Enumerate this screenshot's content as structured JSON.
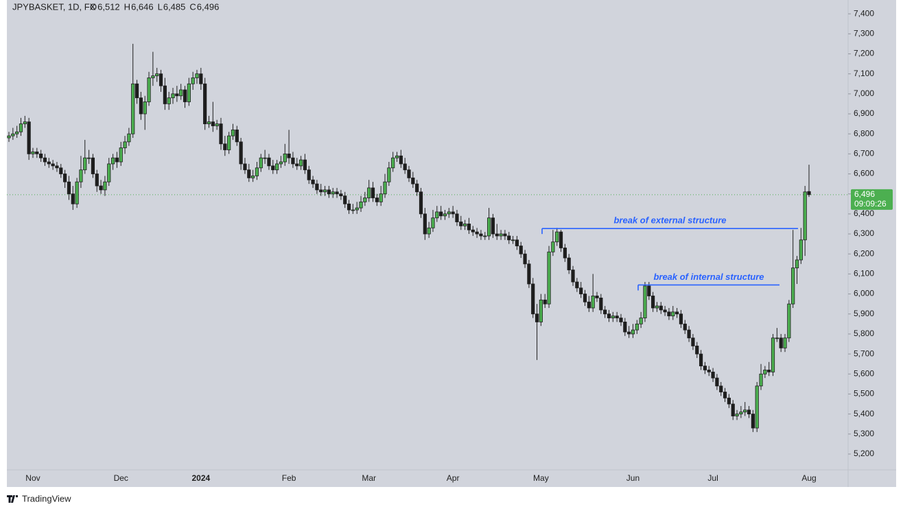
{
  "chart_data": {
    "type": "candlestick",
    "header": {
      "symbol": "JPYBASKET, 1D, FX",
      "items": [
        {
          "key": "O",
          "value": "6,512"
        },
        {
          "key": "H",
          "value": "6,646"
        },
        {
          "key": "L",
          "value": "6,485"
        },
        {
          "key": "C",
          "value": "6,496"
        }
      ]
    },
    "categories": [
      null,
      null,
      null,
      null,
      null,
      null,
      "Nov",
      null,
      null,
      null,
      null,
      null,
      null,
      null,
      null,
      null,
      null,
      null,
      null,
      null,
      null,
      null,
      null,
      null,
      null,
      null,
      null,
      null,
      "Dec",
      null,
      null,
      null,
      null,
      null,
      null,
      null,
      null,
      null,
      null,
      null,
      null,
      null,
      null,
      null,
      null,
      null,
      null,
      null,
      "2024",
      null,
      null,
      null,
      null,
      null,
      null,
      null,
      null,
      null,
      null,
      null,
      null,
      null,
      null,
      null,
      null,
      null,
      null,
      null,
      null,
      null,
      "Feb",
      null,
      null,
      null,
      null,
      null,
      null,
      null,
      null,
      null,
      null,
      null,
      null,
      null,
      null,
      null,
      null,
      null,
      null,
      null,
      "Mar",
      null,
      null,
      null,
      null,
      null,
      null,
      null,
      null,
      null,
      null,
      null,
      null,
      null,
      null,
      null,
      null,
      null,
      null,
      null,
      null,
      "Apr",
      null,
      null,
      null,
      null,
      null,
      null,
      null,
      null,
      null,
      null,
      null,
      null,
      null,
      null,
      null,
      null,
      null,
      null,
      null,
      null,
      null,
      "May",
      null,
      null,
      null,
      null,
      null,
      null,
      null,
      null,
      null,
      null,
      null,
      null,
      null,
      null,
      null,
      null,
      null,
      null,
      null,
      null,
      null,
      null,
      "Jun",
      null,
      null,
      null,
      null,
      null,
      null,
      null,
      null,
      null,
      null,
      null,
      null,
      null,
      null,
      null,
      null,
      null,
      null,
      null,
      "Jul",
      null,
      null,
      null,
      null,
      null,
      null,
      null,
      null,
      null,
      null,
      null,
      null,
      null,
      null,
      null,
      null,
      null,
      null,
      null,
      null,
      null,
      null,
      null,
      "Aug"
    ],
    "open": [
      6780,
      6790,
      6800,
      6810,
      6850,
      6860,
      6700,
      6710,
      6700,
      6680,
      6660,
      6650,
      6640,
      6630,
      6600,
      6560,
      6500,
      6450,
      6560,
      6620,
      6680,
      6680,
      6600,
      6540,
      6520,
      6560,
      6650,
      6680,
      6660,
      6730,
      6760,
      6800,
      7050,
      6980,
      6900,
      6960,
      7080,
      7090,
      7100,
      7040,
      6950,
      6980,
      7000,
      6990,
      7020,
      6960,
      7050,
      7080,
      7100,
      7050,
      6850,
      6860,
      6840,
      6850,
      6750,
      6720,
      6790,
      6820,
      6760,
      6650,
      6620,
      6580,
      6590,
      6630,
      6680,
      6680,
      6640,
      6620,
      6650,
      6660,
      6700,
      6680,
      6650,
      6640,
      6670,
      6620,
      6570,
      6550,
      6520,
      6510,
      6520,
      6500,
      6510,
      6500,
      6490,
      6450,
      6420,
      6420,
      6430,
      6460,
      6480,
      6530,
      6480,
      6460,
      6500,
      6560,
      6630,
      6680,
      6690,
      6650,
      6620,
      6580,
      6550,
      6510,
      6400,
      6300,
      6330,
      6380,
      6410,
      6390,
      6400,
      6410,
      6400,
      6360,
      6340,
      6350,
      6320,
      6310,
      6300,
      6290,
      6290,
      6380,
      6300,
      6290,
      6300,
      6290,
      6270,
      6270,
      6240,
      6200,
      6150,
      6050,
      5900,
      5860,
      5970,
      5950,
      6210,
      6260,
      6310,
      6230,
      6180,
      6120,
      6060,
      6030,
      6000,
      5960,
      5930,
      5990,
      5980,
      5920,
      5900,
      5880,
      5890,
      5880,
      5860,
      5810,
      5800,
      5820,
      5850,
      5880,
      6040,
      5990,
      5930,
      5940,
      5920,
      5910,
      5890,
      5910,
      5900,
      5850,
      5820,
      5780,
      5740,
      5700,
      5640,
      5620,
      5610,
      5580,
      5540,
      5510,
      5480,
      5450,
      5390,
      5400,
      5410,
      5420,
      5400,
      5330,
      5540,
      5600,
      5620,
      5610,
      5780,
      5780,
      5730,
      5780,
      5950,
      6130,
      6170,
      6270,
      6512
    ],
    "high": [
      6810,
      6830,
      6840,
      6880,
      6890,
      6880,
      6730,
      6730,
      6720,
      6700,
      6680,
      6670,
      6660,
      6650,
      6620,
      6590,
      6540,
      6580,
      6690,
      6770,
      6720,
      6700,
      6620,
      6570,
      6590,
      6680,
      6700,
      6710,
      6760,
      6790,
      6830,
      7250,
      7070,
      7010,
      6990,
      7110,
      7210,
      7130,
      7120,
      7080,
      7010,
      7030,
      7040,
      7050,
      7040,
      7080,
      7110,
      7120,
      7130,
      7080,
      6890,
      6960,
      6870,
      6880,
      6790,
      6810,
      6850,
      6840,
      6780,
      6680,
      6650,
      6620,
      6660,
      6700,
      6720,
      6700,
      6670,
      6670,
      6690,
      6750,
      6820,
      6710,
      6680,
      6690,
      6700,
      6640,
      6590,
      6570,
      6550,
      6540,
      6540,
      6530,
      6530,
      6520,
      6510,
      6470,
      6450,
      6460,
      6490,
      6510,
      6570,
      6560,
      6500,
      6540,
      6600,
      6660,
      6710,
      6710,
      6720,
      6680,
      6640,
      6610,
      6570,
      6530,
      6430,
      6360,
      6420,
      6440,
      6440,
      6420,
      6430,
      6440,
      6420,
      6390,
      6370,
      6380,
      6340,
      6330,
      6320,
      6310,
      6430,
      6400,
      6350,
      6320,
      6320,
      6310,
      6290,
      6290,
      6260,
      6220,
      6170,
      6080,
      5950,
      6000,
      6000,
      6240,
      6320,
      6330,
      6320,
      6250,
      6200,
      6140,
      6080,
      6060,
      6020,
      5990,
      6100,
      6010,
      6000,
      5940,
      5920,
      5910,
      5910,
      5900,
      5880,
      5840,
      5850,
      5870,
      5910,
      6060,
      6060,
      6010,
      5960,
      5960,
      5940,
      5930,
      5940,
      5930,
      5920,
      5870,
      5840,
      5800,
      5760,
      5720,
      5660,
      5640,
      5630,
      5600,
      5560,
      5530,
      5500,
      5470,
      5420,
      5440,
      5460,
      5440,
      5420,
      5560,
      5650,
      5640,
      5660,
      5800,
      5830,
      5800,
      5800,
      5970,
      6320,
      6190,
      6330,
      6540,
      6646
    ],
    "low": [
      6760,
      6770,
      6780,
      6790,
      6830,
      6670,
      6680,
      6680,
      6660,
      6640,
      6630,
      6620,
      6610,
      6580,
      6530,
      6470,
      6420,
      6430,
      6530,
      6600,
      6650,
      6580,
      6510,
      6500,
      6490,
      6540,
      6620,
      6630,
      6640,
      6700,
      6740,
      6780,
      6950,
      6870,
      6820,
      6940,
      7040,
      7060,
      7010,
      6920,
      6920,
      6950,
      6960,
      6970,
      6930,
      6940,
      7020,
      7050,
      7020,
      6820,
      6830,
      6810,
      6820,
      6720,
      6690,
      6700,
      6770,
      6740,
      6620,
      6600,
      6560,
      6560,
      6570,
      6610,
      6650,
      6620,
      6600,
      6600,
      6630,
      6640,
      6650,
      6630,
      6620,
      6620,
      6600,
      6550,
      6530,
      6500,
      6490,
      6490,
      6480,
      6480,
      6480,
      6470,
      6430,
      6400,
      6400,
      6400,
      6410,
      6440,
      6460,
      6460,
      6440,
      6440,
      6480,
      6540,
      6610,
      6660,
      6630,
      6600,
      6560,
      6530,
      6490,
      6380,
      6270,
      6280,
      6310,
      6360,
      6370,
      6370,
      6380,
      6380,
      6340,
      6320,
      6320,
      6300,
      6290,
      6280,
      6270,
      6270,
      6270,
      6280,
      6270,
      6270,
      6270,
      6250,
      6250,
      6220,
      6180,
      6130,
      6030,
      5880,
      5670,
      5840,
      5930,
      5930,
      6190,
      6240,
      6210,
      6160,
      6100,
      6040,
      6010,
      5980,
      5940,
      5910,
      5910,
      5960,
      5900,
      5880,
      5860,
      5860,
      5860,
      5840,
      5790,
      5780,
      5780,
      5800,
      5830,
      5860,
      5970,
      5910,
      5910,
      5900,
      5890,
      5870,
      5870,
      5880,
      5830,
      5800,
      5760,
      5720,
      5680,
      5620,
      5600,
      5590,
      5560,
      5520,
      5490,
      5460,
      5430,
      5370,
      5370,
      5380,
      5390,
      5380,
      5310,
      5310,
      5520,
      5580,
      5590,
      5590,
      5760,
      5710,
      5710,
      5760,
      5930,
      6050,
      6150,
      6190,
      6485
    ],
    "close": [
      6790,
      6800,
      6810,
      6850,
      6860,
      6700,
      6710,
      6700,
      6680,
      6660,
      6650,
      6640,
      6630,
      6600,
      6560,
      6500,
      6450,
      6560,
      6620,
      6680,
      6680,
      6600,
      6540,
      6520,
      6560,
      6650,
      6680,
      6660,
      6730,
      6760,
      6800,
      7050,
      6980,
      6900,
      6960,
      7080,
      7090,
      7100,
      7040,
      6950,
      6980,
      7000,
      6990,
      7020,
      6960,
      7050,
      7080,
      7100,
      7050,
      6850,
      6860,
      6840,
      6850,
      6750,
      6720,
      6790,
      6820,
      6760,
      6650,
      6620,
      6580,
      6590,
      6630,
      6680,
      6680,
      6640,
      6620,
      6650,
      6660,
      6700,
      6680,
      6650,
      6640,
      6670,
      6620,
      6570,
      6550,
      6520,
      6510,
      6520,
      6500,
      6510,
      6500,
      6490,
      6450,
      6420,
      6420,
      6430,
      6460,
      6480,
      6530,
      6480,
      6460,
      6500,
      6560,
      6630,
      6680,
      6690,
      6650,
      6620,
      6580,
      6550,
      6510,
      6400,
      6300,
      6330,
      6380,
      6410,
      6390,
      6400,
      6410,
      6400,
      6360,
      6340,
      6350,
      6320,
      6310,
      6300,
      6290,
      6290,
      6380,
      6300,
      6290,
      6300,
      6290,
      6270,
      6270,
      6240,
      6200,
      6150,
      6050,
      5900,
      5860,
      5970,
      5950,
      6210,
      6260,
      6310,
      6230,
      6180,
      6120,
      6060,
      6030,
      6000,
      5960,
      5930,
      5990,
      5980,
      5920,
      5900,
      5880,
      5890,
      5880,
      5860,
      5810,
      5800,
      5820,
      5850,
      5880,
      6040,
      5990,
      5930,
      5940,
      5920,
      5910,
      5890,
      5910,
      5900,
      5850,
      5820,
      5780,
      5740,
      5700,
      5640,
      5620,
      5610,
      5580,
      5540,
      5510,
      5480,
      5450,
      5390,
      5400,
      5410,
      5420,
      5400,
      5330,
      5540,
      5600,
      5620,
      5610,
      5780,
      5780,
      5730,
      5780,
      5950,
      6130,
      6170,
      6270,
      6510,
      6496
    ],
    "up_color": "#4caf50",
    "down_color": "#1e1e1e",
    "ylim": [
      5121,
      7469
    ],
    "yticks": [
      {
        "value": 5200,
        "label": "5,200"
      },
      {
        "value": 5300,
        "label": "5,300"
      },
      {
        "value": 5400,
        "label": "5,400"
      },
      {
        "value": 5500,
        "label": "5,500"
      },
      {
        "value": 5600,
        "label": "5,600"
      },
      {
        "value": 5700,
        "label": "5,700"
      },
      {
        "value": 5800,
        "label": "5,800"
      },
      {
        "value": 5900,
        "label": "5,900"
      },
      {
        "value": 6000,
        "label": "6,000"
      },
      {
        "value": 6100,
        "label": "6,100"
      },
      {
        "value": 6200,
        "label": "6,200"
      },
      {
        "value": 6300,
        "label": "6,300"
      },
      {
        "value": 6400,
        "label": "6,400"
      },
      {
        "value": 6500,
        "label": "6,500"
      },
      {
        "value": 6600,
        "label": "6,600"
      },
      {
        "value": 6700,
        "label": "6,700"
      },
      {
        "value": 6800,
        "label": "6,800"
      },
      {
        "value": 6900,
        "label": "6,900"
      },
      {
        "value": 7000,
        "label": "7,000"
      },
      {
        "value": 7100,
        "label": "7,100"
      },
      {
        "value": 7200,
        "label": "7,200"
      },
      {
        "value": 7300,
        "label": "7,300"
      },
      {
        "value": 7400,
        "label": "7,400"
      }
    ],
    "last_price": {
      "value": 6496,
      "label": "6,496",
      "countdown": "09:09:26",
      "color": "#4caf50"
    },
    "annotations": [
      {
        "text": "break of external structure",
        "level": 6327,
        "color": "#2962ff"
      },
      {
        "text": "break of internal structure",
        "level": 6045,
        "color": "#2962ff"
      }
    ],
    "footer": "TradingView"
  }
}
